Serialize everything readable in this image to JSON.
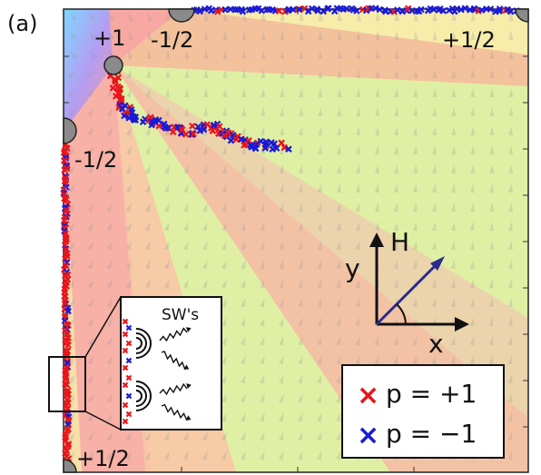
{
  "panel_label": "(a)",
  "defects": [
    {
      "id": "topleft-corner",
      "charge": ""
    },
    {
      "id": "vortex",
      "charge": "+1"
    },
    {
      "id": "top-edge",
      "charge": "-1/2"
    },
    {
      "id": "top-right-corner",
      "charge": "+1/2"
    },
    {
      "id": "left-edge",
      "charge": "-1/2"
    },
    {
      "id": "bottom-left-corner",
      "charge": "+1/2"
    }
  ],
  "axes_diagram": {
    "y_label": "y",
    "x_label": "x",
    "field_label": "H"
  },
  "inset": {
    "label": "SW's"
  },
  "legend": {
    "entries": [
      {
        "marker": "×",
        "color": "#e8151b",
        "text": "p = +1"
      },
      {
        "marker": "×",
        "color": "#1a1ad6",
        "text": "p = −1"
      }
    ]
  },
  "colors": {
    "red_marker": "#e8151b",
    "blue_marker": "#1a1ad6",
    "field_arrow": "#2b2b8c"
  }
}
